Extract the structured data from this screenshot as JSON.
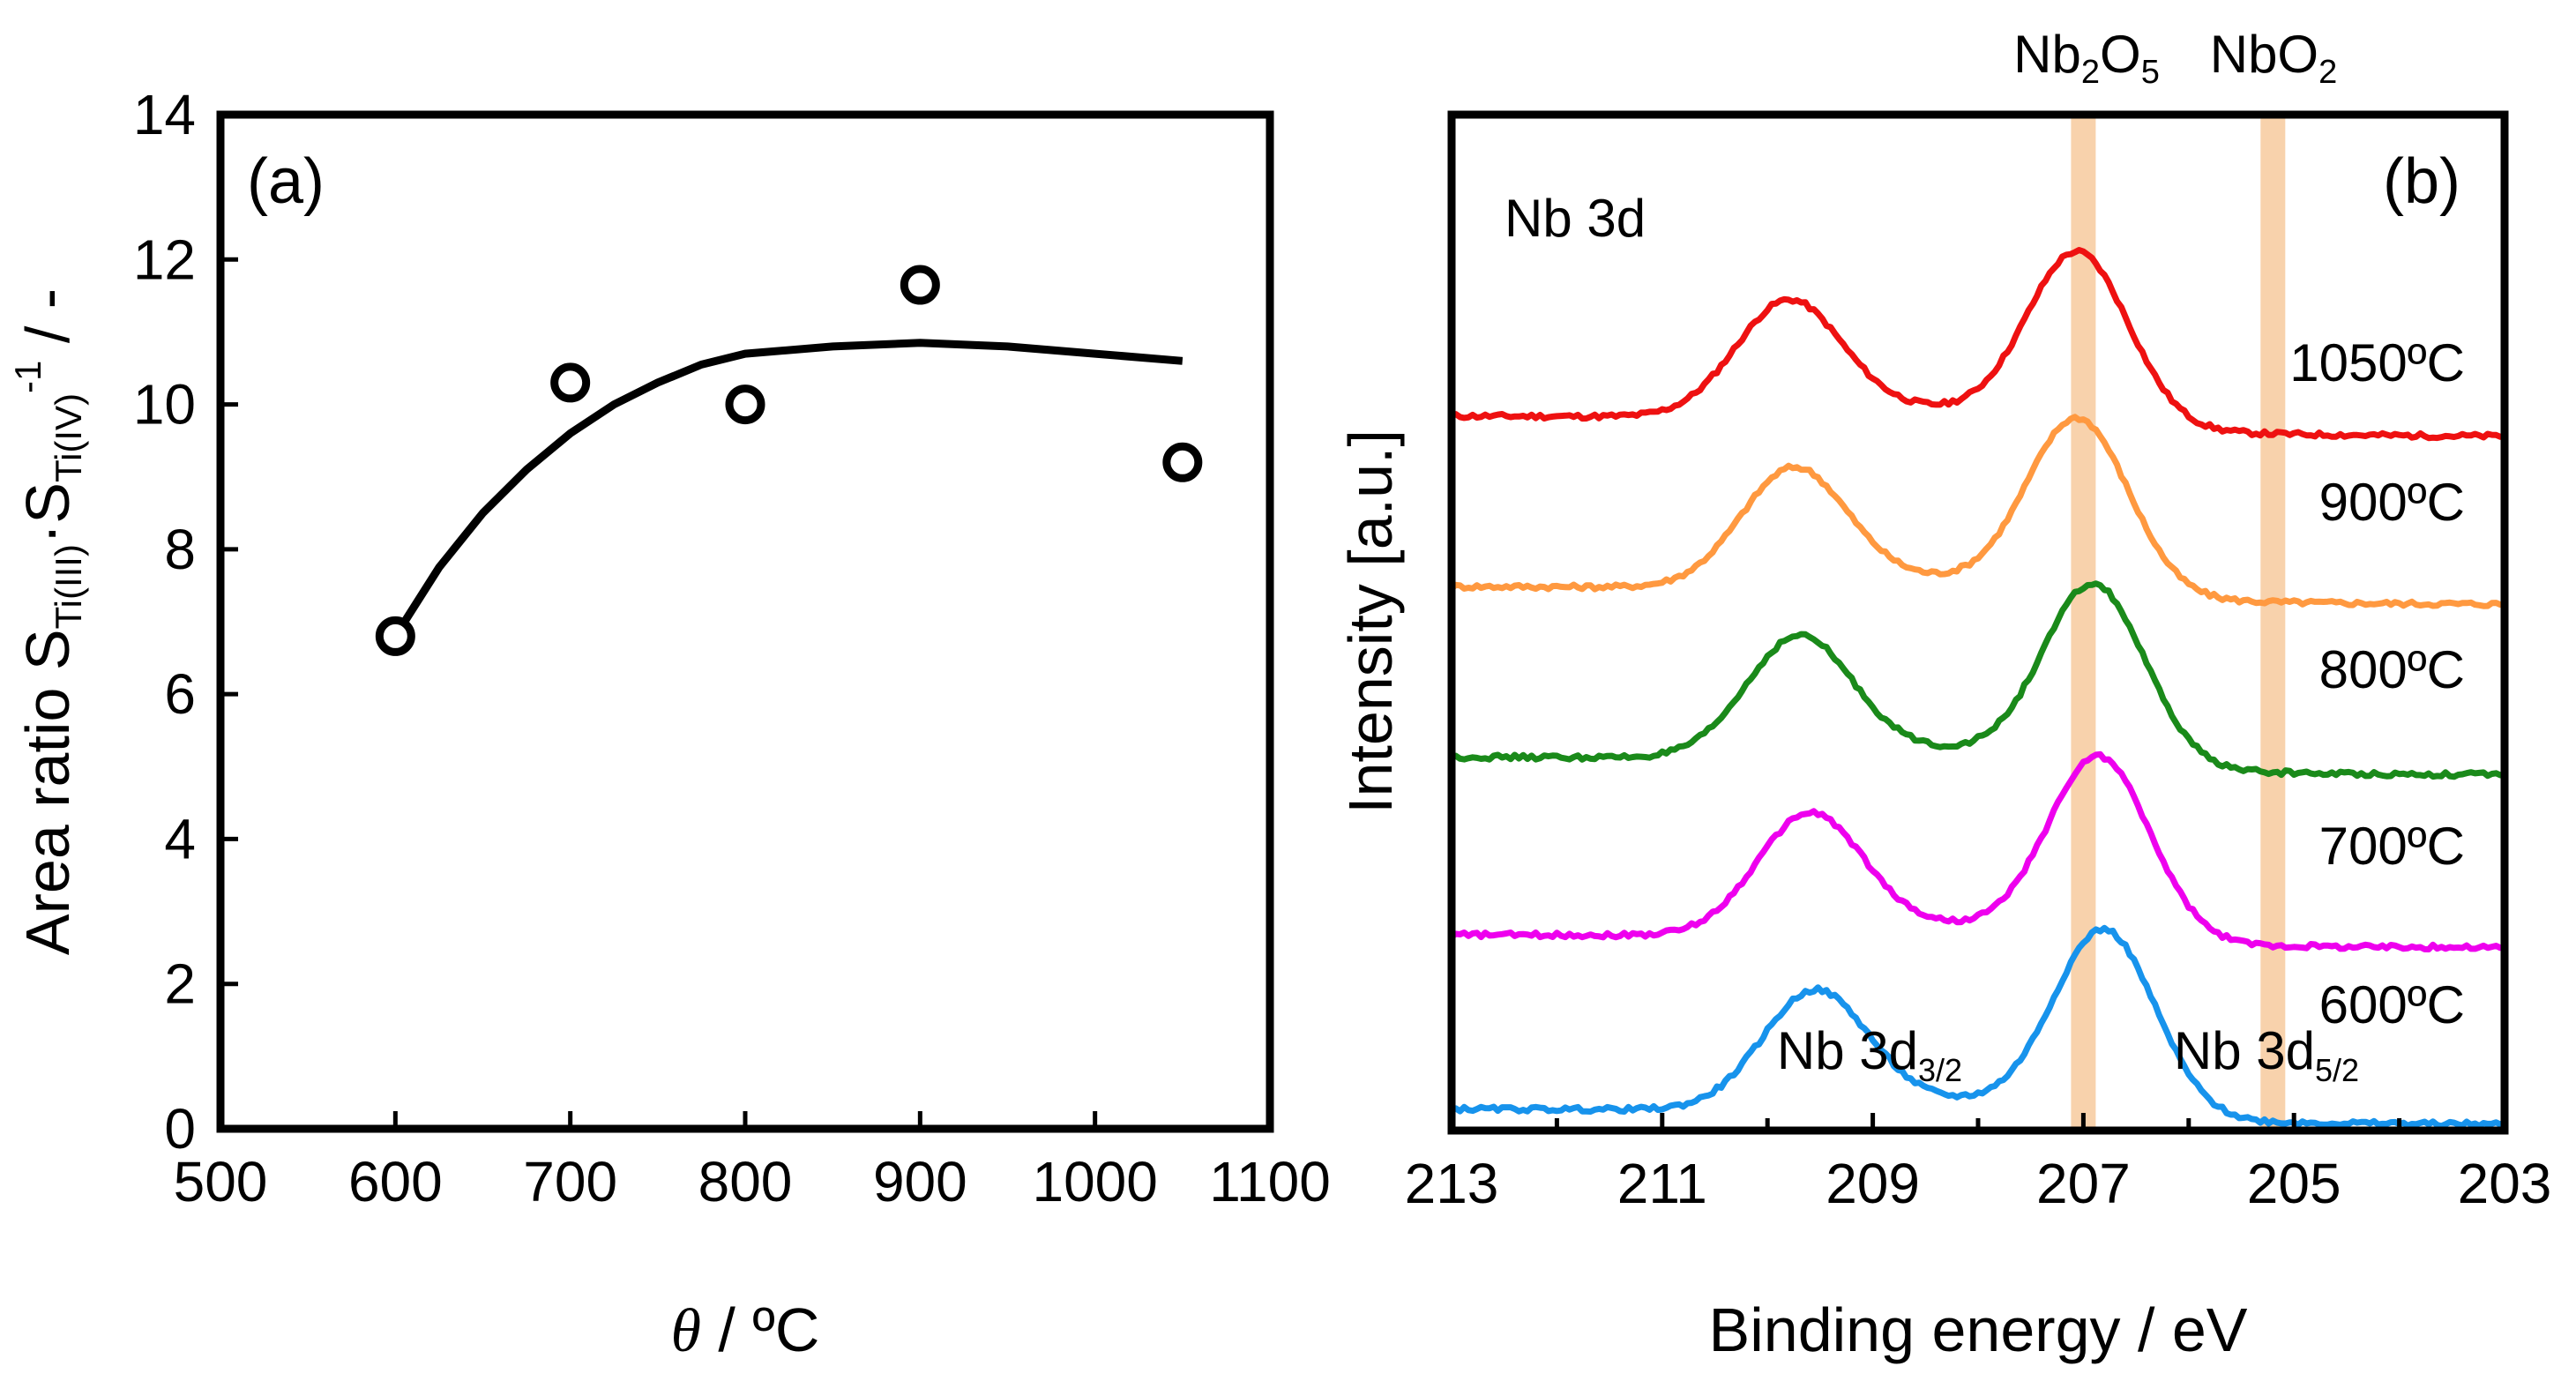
{
  "chart_data": [
    {
      "panel": "(a)",
      "type": "scatter",
      "xlabel_symbol": "θ",
      "xlabel_unit": " / ºC",
      "ylabel": {
        "prefix": "Area ratio S",
        "sub1": "Ti(III)",
        "mid": "·S",
        "sub2": "Ti(IV)",
        "sup": "-1",
        "suffix": "  / -"
      },
      "xlim": [
        500,
        1100
      ],
      "ylim": [
        0,
        14
      ],
      "xticks": [
        500,
        600,
        700,
        800,
        900,
        1000,
        1100
      ],
      "yticks": [
        0,
        2,
        4,
        6,
        8,
        10,
        12,
        14
      ],
      "points": [
        {
          "x": 600,
          "y": 6.8
        },
        {
          "x": 700,
          "y": 10.3
        },
        {
          "x": 800,
          "y": 10.0
        },
        {
          "x": 900,
          "y": 11.65
        },
        {
          "x": 1050,
          "y": 9.2
        }
      ],
      "fit_curve": [
        [
          600,
          6.8
        ],
        [
          625,
          7.75
        ],
        [
          650,
          8.5
        ],
        [
          675,
          9.1
        ],
        [
          700,
          9.6
        ],
        [
          725,
          10.0
        ],
        [
          750,
          10.3
        ],
        [
          775,
          10.55
        ],
        [
          800,
          10.7
        ],
        [
          850,
          10.8
        ],
        [
          900,
          10.85
        ],
        [
          950,
          10.8
        ],
        [
          1000,
          10.7
        ],
        [
          1050,
          10.6
        ]
      ]
    },
    {
      "panel": "(b)",
      "type": "line",
      "title": "Nb 3d",
      "xlabel": "Binding energy / eV",
      "ylabel": "Intensity [a.u.]",
      "xlim": [
        213,
        203
      ],
      "xticks": [
        213,
        211,
        209,
        207,
        205,
        203
      ],
      "reference_bands": [
        {
          "label": "Nb",
          "sub1": "2",
          "mid": "O",
          "sub2": "5",
          "energy": 207.0
        },
        {
          "label": "NbO",
          "sub1": "2",
          "mid": "",
          "sub2": "",
          "energy": 205.2
        }
      ],
      "peak_labels": [
        {
          "main": "Nb 3d",
          "sub": "3/2"
        },
        {
          "main": "Nb 3d",
          "sub": "5/2"
        }
      ],
      "series": [
        {
          "name": "1050ºC",
          "temp": "1050",
          "unit": "C",
          "color": "#ee1111",
          "offset": 12.15,
          "peak1_energy": 209.8,
          "peak2_energy": 207.05,
          "valley_energy": 208.35,
          "left_base": 0.0,
          "right_base": -0.4,
          "peak1": 2.3,
          "peak2": 3.45,
          "valley": 1.45
        },
        {
          "name": "900ºC",
          "temp": "900",
          "unit": "C",
          "color": "#ff9940",
          "offset": 9.8,
          "peak1_energy": 209.75,
          "peak2_energy": 207.05,
          "valley_energy": 208.35,
          "left_base": 0.0,
          "right_base": -0.35,
          "peak1": 2.35,
          "peak2": 3.5,
          "valley": 0.8
        },
        {
          "name": "800ºC",
          "temp": "800",
          "unit": "C",
          "color": "#1a8a1a",
          "offset": 7.45,
          "peak1_energy": 209.7,
          "peak2_energy": 206.9,
          "valley_energy": 208.3,
          "left_base": 0.0,
          "right_base": -0.35,
          "peak1": 2.4,
          "peak2": 3.6,
          "valley": 0.95
        },
        {
          "name": "700ºC",
          "temp": "700",
          "unit": "C",
          "color": "#ee00ee",
          "offset": 5.0,
          "peak1_energy": 209.6,
          "peak2_energy": 206.85,
          "valley_energy": 208.3,
          "left_base": 0.0,
          "right_base": -0.25,
          "peak1": 2.4,
          "peak2": 3.65,
          "valley": 0.75
        },
        {
          "name": "600ºC",
          "temp": "600",
          "unit": "C",
          "color": "#1793ec",
          "offset": 2.6,
          "peak1_energy": 209.55,
          "peak2_energy": 206.8,
          "valley_energy": 208.2,
          "left_base": 0.0,
          "right_base": -0.3,
          "peak1": 2.35,
          "peak2": 3.7,
          "valley": 0.6
        }
      ]
    }
  ]
}
